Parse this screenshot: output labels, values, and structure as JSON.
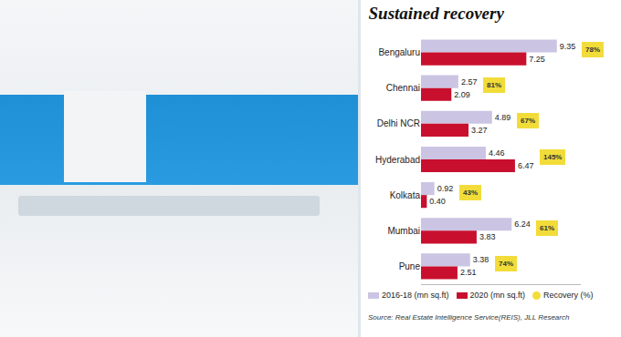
{
  "chart_data": {
    "type": "bar",
    "title": "Sustained recovery",
    "orientation": "horizontal",
    "categories": [
      "Bengaluru",
      "Chennai",
      "Delhi NCR",
      "Hyderabad",
      "Kolkata",
      "Mumbai",
      "Pune"
    ],
    "series": [
      {
        "name": "2016-18 (mn sq.ft)",
        "color": "#cbc5e3",
        "values": [
          9.35,
          2.57,
          4.89,
          4.46,
          0.92,
          6.24,
          3.38
        ],
        "value_labels": [
          "9.35",
          "2.57",
          "4.89",
          "4.46",
          "0.92",
          "6.24",
          "3.38"
        ]
      },
      {
        "name": "2020 (mn sq.ft)",
        "color": "#c8102e",
        "values": [
          7.25,
          2.09,
          3.27,
          6.47,
          0.4,
          3.83,
          2.51
        ],
        "value_labels": [
          "7.25",
          "2.09",
          "3.27",
          "6.47",
          "0.40",
          "3.83",
          "2.51"
        ]
      }
    ],
    "recovery": {
      "name": "Recovery (%)",
      "color": "#f2dc3a",
      "marker": "circle",
      "values": [
        78,
        81,
        67,
        145,
        43,
        61,
        74
      ],
      "value_labels": [
        "78%",
        "81%",
        "67%",
        "145%",
        "43%",
        "61%",
        "74%"
      ]
    },
    "xlim": [
      0,
      11
    ],
    "data_labels": true,
    "tick_labels": "y",
    "grid": false,
    "legend": "bottom",
    "source": "Source: Real Estate Intelligence Service(REIS), JLL Research"
  }
}
